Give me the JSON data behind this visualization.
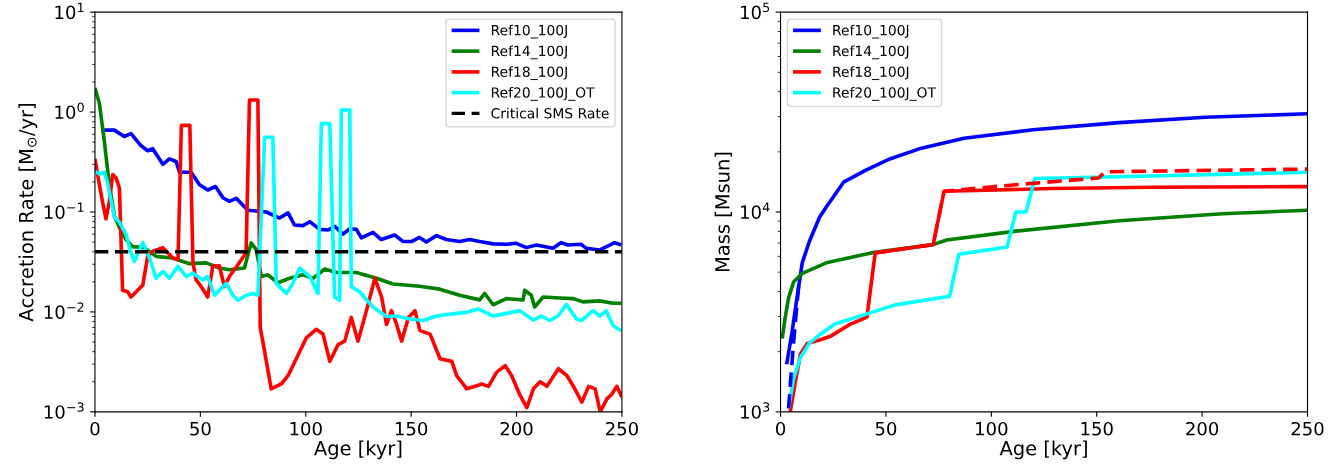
{
  "chart_data": [
    {
      "type": "line",
      "xlabel": "Age [kyr]",
      "ylabel": "Accretion Rate [M$_{⊙}$/yr]",
      "log": "y",
      "xlim": [
        0,
        250
      ],
      "ylim": [
        0.001,
        10
      ],
      "xticks": [
        0,
        50,
        100,
        150,
        200,
        250
      ],
      "yticks": [
        {
          "value": 0.001,
          "label": "10$^{−3}$"
        },
        {
          "value": 0.01,
          "label": "10$^{−2}$"
        },
        {
          "value": 0.1,
          "label": "10$^{−1}$"
        },
        {
          "value": 1,
          "label": "10$^{0}$"
        },
        {
          "value": 10,
          "label": "10$^{1}$"
        }
      ],
      "legend": "top right",
      "grid": false,
      "marker": "none",
      "ref_lines": [
        {
          "axis": "y",
          "value": 0.04,
          "label": "Critical SMS Rate",
          "color": "#000000",
          "line_style": "dashed"
        }
      ],
      "series": [
        {
          "name": "Ref10_100J",
          "color": "#0000ff",
          "x": [
            2.9,
            9.2,
            13.9,
            17.1,
            21.9,
            25,
            27.4,
            32.2,
            35.3,
            38.5,
            40.1,
            45.6,
            49.6,
            53.5,
            57.2,
            60.7,
            63.8,
            67,
            72.5,
            81.3,
            87.6,
            91.6,
            94.7,
            98.7,
            101.9,
            106.6,
            110.6,
            113.7,
            117.7,
            120.9,
            124,
            126.4,
            131.9,
            135.8,
            142.2,
            146.2,
            150.1,
            154,
            157.2,
            162,
            166.7,
            173,
            177.8,
            182.5,
            188.9,
            195.2,
            199.9,
            204.7,
            209.4,
            217.3,
            221.2,
            224.4,
            230.7,
            233.1,
            239.4,
            243.4,
            246.5,
            249.7
          ],
          "values": [
            0.66,
            0.66,
            0.57,
            0.61,
            0.46,
            0.41,
            0.43,
            0.3,
            0.34,
            0.32,
            0.25,
            0.25,
            0.187,
            0.166,
            0.18,
            0.139,
            0.128,
            0.137,
            0.104,
            0.1,
            0.087,
            0.098,
            0.074,
            0.073,
            0.08,
            0.067,
            0.066,
            0.072,
            0.06,
            0.068,
            0.067,
            0.055,
            0.0625,
            0.053,
            0.0588,
            0.0506,
            0.0506,
            0.0556,
            0.05,
            0.058,
            0.053,
            0.0506,
            0.053,
            0.0506,
            0.048,
            0.0475,
            0.0486,
            0.044,
            0.0468,
            0.0433,
            0.0494,
            0.0468,
            0.0475,
            0.0433,
            0.0416,
            0.0457,
            0.0494,
            0.0468
          ]
        },
        {
          "name": "Ref14_100J",
          "color": "#008000",
          "x": [
            0,
            2.1,
            4.4,
            6.8,
            9.2,
            11.6,
            14.7,
            17.9,
            23.4,
            29,
            36.9,
            44.8,
            52.7,
            59,
            63.8,
            70.9,
            74.1,
            76.5,
            78.9,
            82,
            86.8,
            92.3,
            98.7,
            103.4,
            109,
            114.5,
            124,
            133.5,
            141.4,
            154,
            163.6,
            173,
            182.5,
            184.9,
            188.9,
            195.2,
            203.1,
            203.9,
            207,
            208.6,
            212.6,
            220.5,
            226.8,
            231.5,
            239.4,
            245.7,
            249.7
          ],
          "values": [
            1.74,
            1.22,
            0.52,
            0.187,
            0.092,
            0.07,
            0.053,
            0.045,
            0.044,
            0.036,
            0.0347,
            0.0304,
            0.031,
            0.0275,
            0.0264,
            0.0275,
            0.049,
            0.042,
            0.0226,
            0.0235,
            0.0196,
            0.0217,
            0.0235,
            0.0217,
            0.0269,
            0.0248,
            0.0248,
            0.0217,
            0.019,
            0.0181,
            0.0169,
            0.0147,
            0.0132,
            0.0153,
            0.0118,
            0.0136,
            0.0132,
            0.0165,
            0.0147,
            0.0112,
            0.0141,
            0.0138,
            0.0136,
            0.0126,
            0.0129,
            0.0122,
            0.0122
          ]
        },
        {
          "name": "Ref18_100J",
          "color": "#ff0000",
          "x": [
            0,
            2.1,
            3.6,
            5.2,
            6.8,
            8.4,
            10,
            11.6,
            13.1,
            15.5,
            17.1,
            20.3,
            22.7,
            25,
            27.4,
            32.2,
            36.9,
            39.4,
            41,
            45,
            46.5,
            48,
            50.4,
            53.5,
            55.9,
            59,
            61.4,
            63.8,
            67.8,
            71.7,
            73.3,
            77.3,
            78.4,
            80.5,
            83.6,
            88.4,
            91.6,
            95.5,
            100.3,
            105,
            108.2,
            111.4,
            115.3,
            118.5,
            121.6,
            124.8,
            128.8,
            132.8,
            136,
            138.3,
            140.7,
            143.1,
            145.5,
            148.7,
            151.8,
            154.2,
            159,
            163.7,
            169.3,
            171.6,
            176.4,
            180.3,
            183.5,
            186.7,
            190.6,
            194.6,
            197.7,
            201.7,
            204.9,
            208,
            211.2,
            214.4,
            219.9,
            223.9,
            227,
            231,
            234.2,
            237.3,
            239.7,
            242.9,
            245.2,
            247.6,
            250
          ],
          "values": [
            0.34,
            0.187,
            0.126,
            0.0855,
            0.126,
            0.237,
            0.219,
            0.173,
            0.0165,
            0.0159,
            0.0141,
            0.0165,
            0.0186,
            0.036,
            0.0406,
            0.044,
            0.0347,
            0.0334,
            0.736,
            0.736,
            0.031,
            0.0209,
            0.0179,
            0.0141,
            0.0286,
            0.029,
            0.0179,
            0.0226,
            0.0297,
            0.039,
            1.32,
            1.32,
            0.007,
            0.004,
            0.0017,
            0.0019,
            0.0023,
            0.0034,
            0.0055,
            0.0067,
            0.006,
            0.0032,
            0.0047,
            0.0051,
            0.0088,
            0.0051,
            0.0103,
            0.0217,
            0.0141,
            0.0075,
            0.0103,
            0.0075,
            0.0051,
            0.0088,
            0.0103,
            0.0065,
            0.006,
            0.0034,
            0.0032,
            0.0023,
            0.0017,
            0.0018,
            0.0019,
            0.0018,
            0.0025,
            0.0029,
            0.0023,
            0.00146,
            0.0011,
            0.0017,
            0.002,
            0.0018,
            0.0027,
            0.0023,
            0.0018,
            0.00125,
            0.0018,
            0.0017,
            0.001,
            0.00135,
            0.0015,
            0.0018,
            0.0014
          ]
        },
        {
          "name": "Ref20_100J_OT",
          "color": "#00ffff",
          "x": [
            0,
            2.1,
            4.4,
            6,
            9.2,
            11.6,
            14.7,
            17.1,
            18.7,
            22.7,
            25.9,
            29,
            32.2,
            35.3,
            39.4,
            43.3,
            46.4,
            51.2,
            53.5,
            56.7,
            59.9,
            62.3,
            65.4,
            67.8,
            71.8,
            74.9,
            77.3,
            80.5,
            84.4,
            86,
            90.8,
            93.9,
            97.1,
            101.9,
            105.8,
            107.4,
            111.4,
            113.7,
            116.1,
            116.9,
            120.9,
            121.6,
            125.6,
            131.9,
            138.3,
            143,
            149.4,
            155.7,
            162,
            166.7,
            176.3,
            181.8,
            188.9,
            193.6,
            201.5,
            207.9,
            211.8,
            215.8,
            219.7,
            223.7,
            228.4,
            230.8,
            236.3,
            239.5,
            242.6,
            245.8,
            249.7
          ],
          "values": [
            0.256,
            0.24,
            0.25,
            0.195,
            0.089,
            0.079,
            0.06,
            0.039,
            0.032,
            0.0494,
            0.0347,
            0.0217,
            0.0254,
            0.0217,
            0.0286,
            0.0226,
            0.0245,
            0.0209,
            0.0226,
            0.0147,
            0.0172,
            0.0193,
            0.0147,
            0.0131,
            0.0147,
            0.0153,
            0.0147,
            0.56,
            0.56,
            0.0193,
            0.0153,
            0.0193,
            0.0275,
            0.0226,
            0.0153,
            0.766,
            0.766,
            0.0141,
            0.0131,
            1.05,
            1.05,
            0.0179,
            0.0159,
            0.0112,
            0.009,
            0.0091,
            0.0085,
            0.0082,
            0.0091,
            0.0094,
            0.0099,
            0.0107,
            0.0091,
            0.0095,
            0.0103,
            0.0083,
            0.0091,
            0.0082,
            0.0091,
            0.0119,
            0.0085,
            0.0082,
            0.0103,
            0.0091,
            0.0103,
            0.0073,
            0.0065
          ]
        }
      ]
    },
    {
      "type": "line",
      "xlabel": "Age [kyr]",
      "ylabel": "Mass [Msun]",
      "log": "y",
      "xlim": [
        0,
        250
      ],
      "ylim": [
        1000,
        100000
      ],
      "xticks": [
        0,
        50,
        100,
        150,
        200,
        250
      ],
      "yticks": [
        {
          "value": 1000,
          "label": "10$^{3}$"
        },
        {
          "value": 10000,
          "label": "10$^{4}$"
        },
        {
          "value": 100000,
          "label": "10$^{5}$"
        }
      ],
      "legend": "top left",
      "grid": false,
      "marker": "none",
      "series": [
        {
          "name": "Ref10_100J",
          "color": "#0000ff",
          "x": [
            2.9,
            5.4,
            7.8,
            10.3,
            13.6,
            18.5,
            21.7,
            29.9,
            40.5,
            51.1,
            65.8,
            87.1,
            119.8,
            160.6,
            201.5,
            250
          ],
          "values": [
            1730,
            2480,
            3720,
            5570,
            7100,
            9420,
            10600,
            14100,
            16200,
            18300,
            20700,
            23400,
            25800,
            28000,
            29800,
            31000
          ]
        },
        {
          "name": "Ref14_100J",
          "color": "#008000",
          "x": [
            0.8,
            2.1,
            3.8,
            6.2,
            10.3,
            21.7,
            44.6,
            72.4,
            78.9,
            111.6,
            160.6,
            209.6,
            250
          ],
          "values": [
            2330,
            2920,
            3720,
            4460,
            4930,
            5570,
            6290,
            6870,
            7240,
            8020,
            9040,
            9800,
            10200
          ]
        },
        {
          "name": "Ref18_100J",
          "color": "#ff0000",
          "x": [
            4.6,
            7,
            9.5,
            12.7,
            18.5,
            23.4,
            33.2,
            41,
            44.9,
            72.4,
            77.6,
            128,
            177,
            250
          ],
          "values": [
            1000,
            1410,
            1950,
            2200,
            2290,
            2380,
            2750,
            2980,
            6240,
            6870,
            12700,
            13100,
            13300,
            13400
          ]
        },
        {
          "name": "Ref20_100J_OT",
          "color": "#00ffff",
          "x": [
            3.8,
            6.2,
            9.5,
            13.6,
            18.5,
            25.8,
            41.3,
            54.4,
            80.2,
            84.6,
            107.5,
            111.6,
            116.5,
            120.6,
            160.6,
            250
          ],
          "values": [
            1040,
            1470,
            1870,
            2200,
            2430,
            2750,
            3100,
            3430,
            3790,
            6150,
            6680,
            10000,
            10000,
            14700,
            15000,
            15800
          ]
        },
        {
          "color": "#0000ff",
          "line_style": "dashed",
          "x": [
            3.8,
            5.1,
            6.7,
            8.7
          ],
          "values": [
            1040,
            1590,
            2580,
            4360
          ]
        },
        {
          "color": "#ff0000",
          "line_style": "dashed",
          "x": [
            44.9,
            72.4,
            77.6,
            111.6,
            150.8,
            154.1,
            193.3,
            250
          ],
          "values": [
            6240,
            6870,
            12700,
            13700,
            14800,
            15900,
            16100,
            16400
          ]
        }
      ]
    }
  ]
}
